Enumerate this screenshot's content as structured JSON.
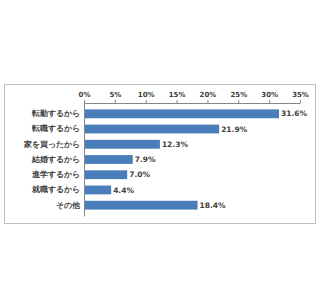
{
  "chart_data": {
    "type": "bar",
    "orientation": "horizontal",
    "categories": [
      "転勤するから",
      "転職するから",
      "家を買ったから",
      "結婚するから",
      "進学するから",
      "就職するから",
      "その他"
    ],
    "values": [
      31.6,
      21.9,
      12.3,
      7.9,
      7.0,
      4.4,
      18.4
    ],
    "value_labels": [
      "31.6%",
      "21.9%",
      "12.3%",
      "7.9%",
      "7.0%",
      "4.4%",
      "18.4%"
    ],
    "color": "#4a7ebb",
    "xlim": [
      0,
      35
    ],
    "xticks": [
      {
        "value": 0,
        "label": "0%"
      },
      {
        "value": 5,
        "label": "5%"
      },
      {
        "value": 10,
        "label": "10%"
      },
      {
        "value": 15,
        "label": "15%"
      },
      {
        "value": 20,
        "label": "20%"
      },
      {
        "value": 25,
        "label": "25%"
      },
      {
        "value": 30,
        "label": "30%"
      },
      {
        "value": 35,
        "label": "35%"
      }
    ],
    "grid": false,
    "data_labels": true
  }
}
